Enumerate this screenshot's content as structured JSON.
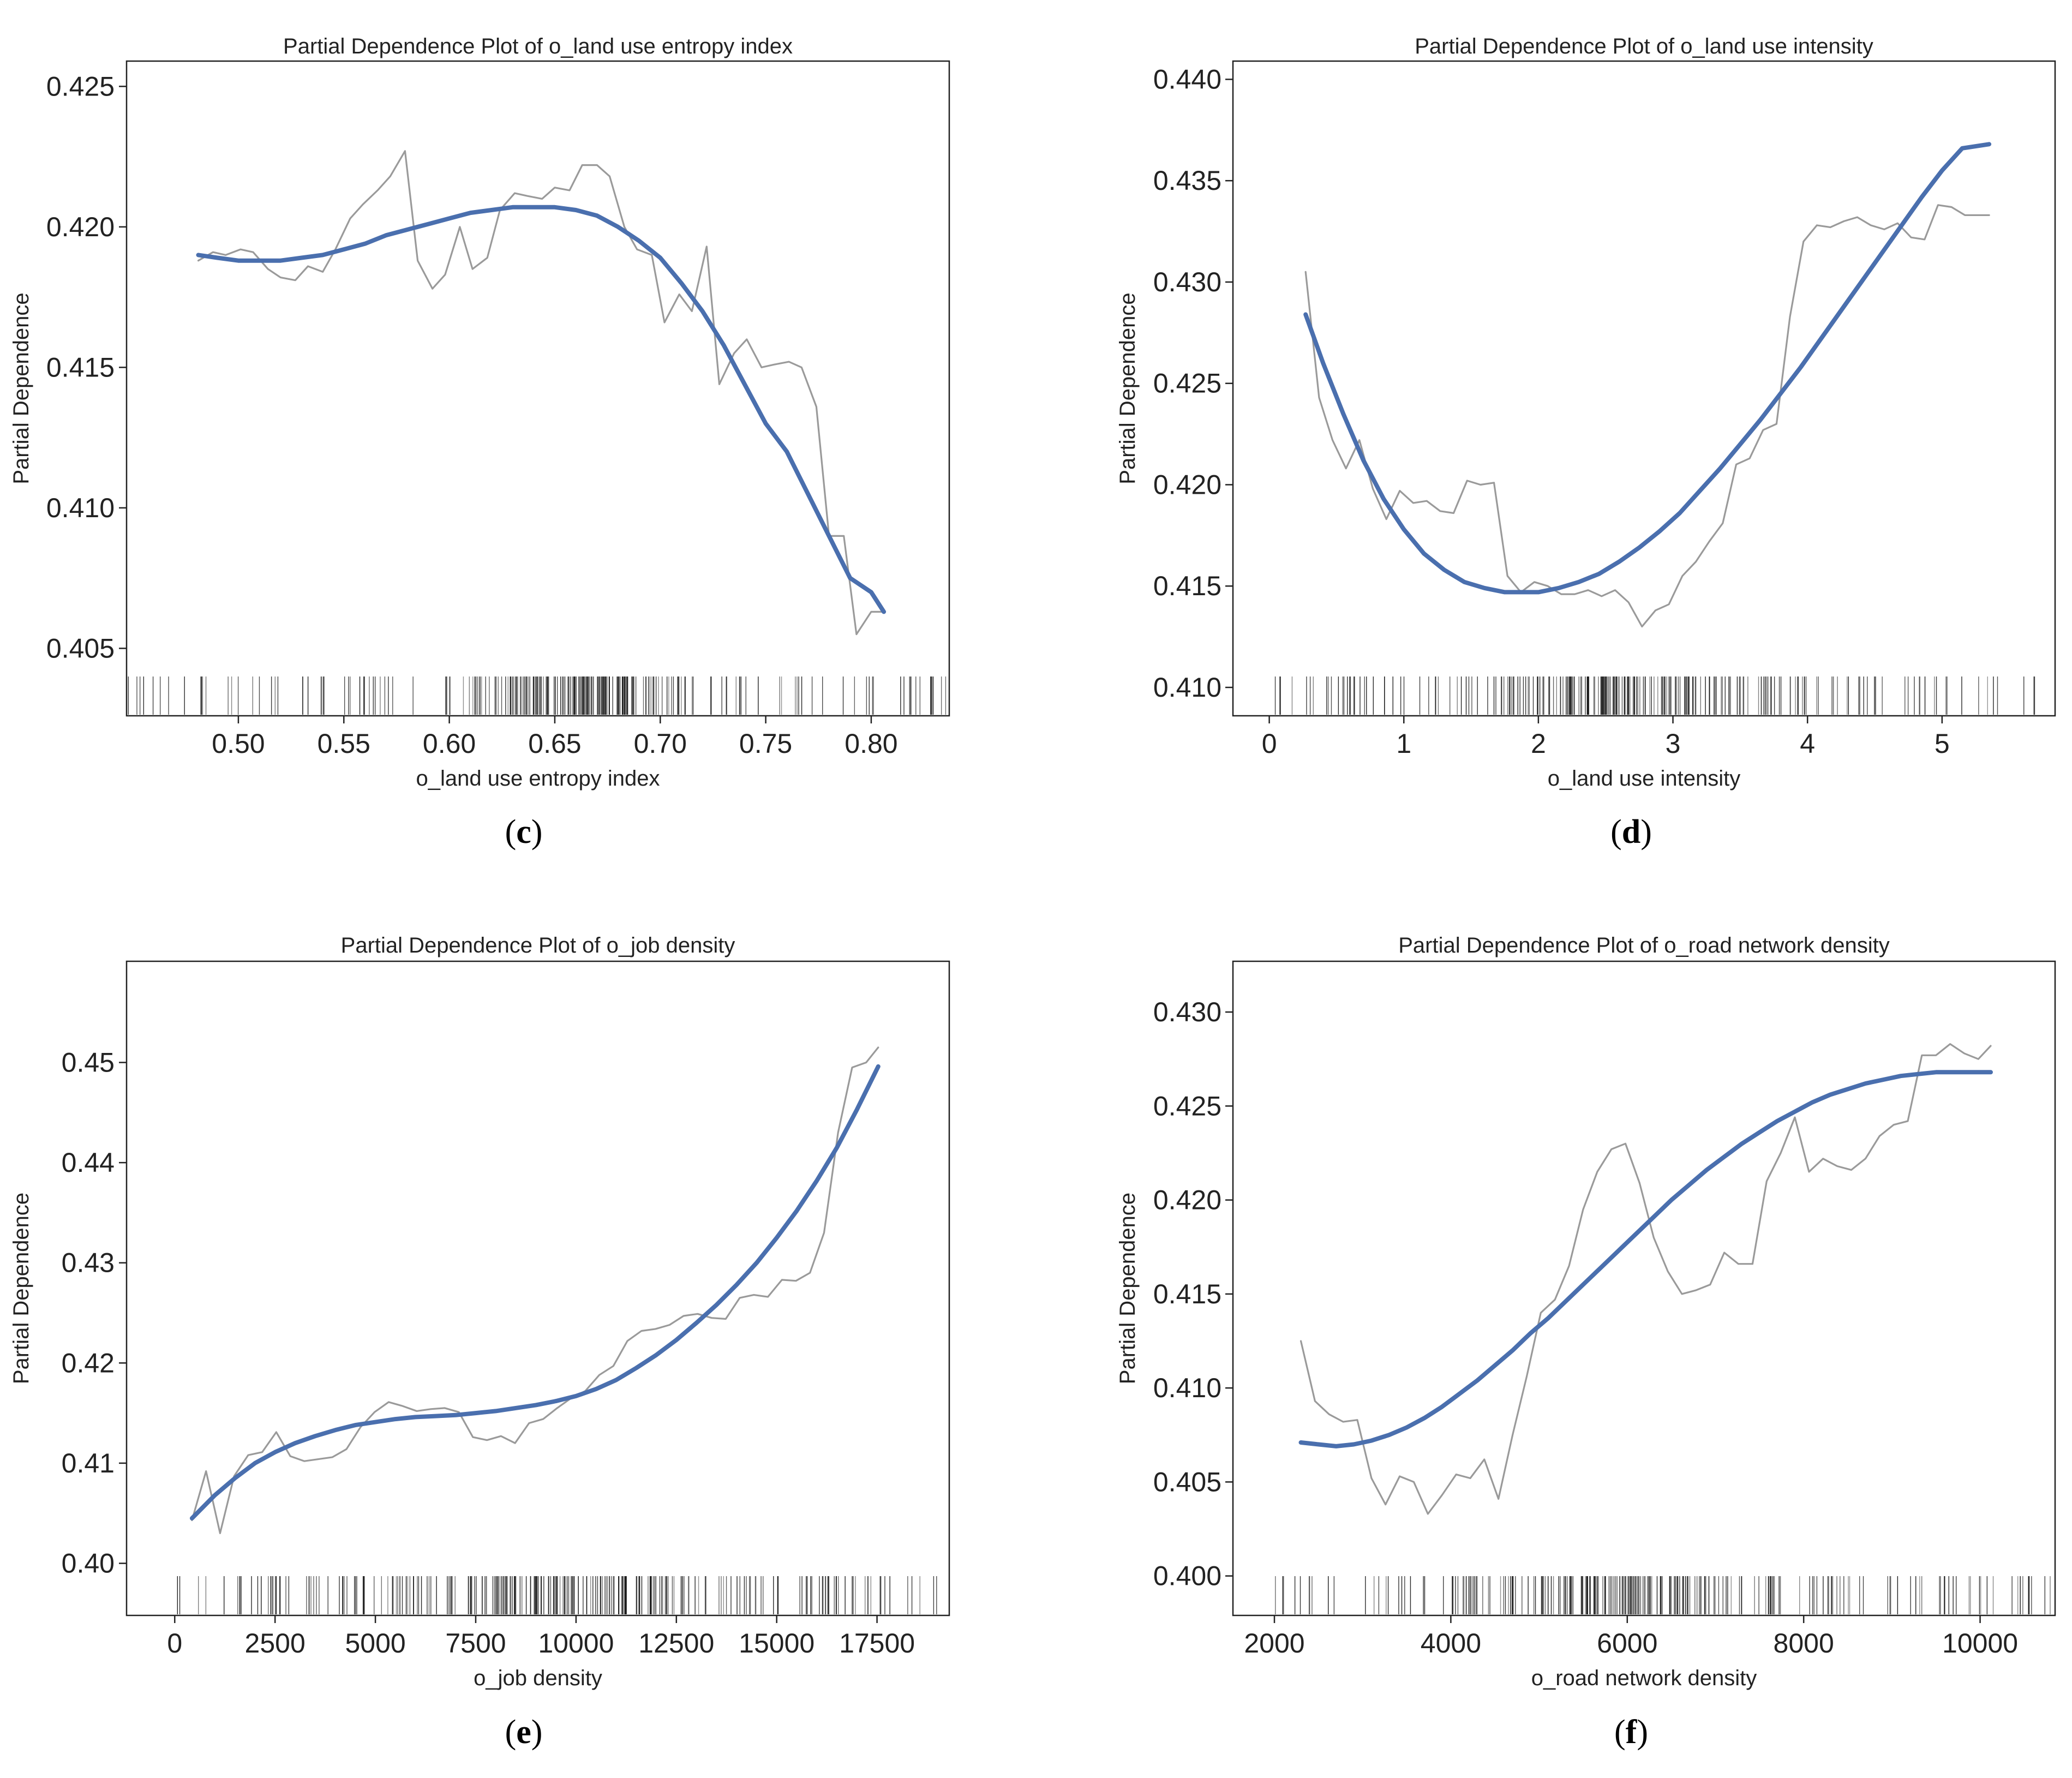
{
  "colors": {
    "raw": "#9a9a9a",
    "fit": "#4a6fae",
    "rug": "#111111",
    "axis": "#222222",
    "background": "#ffffff"
  },
  "chart_data": [
    {
      "id": "c",
      "type": "line",
      "caption": "c",
      "title": "Partial Dependence Plot of o_land use entropy index",
      "xlabel": "o_land use entropy index",
      "ylabel": "Partial Dependence",
      "xlim": [
        0.447,
        0.837
      ],
      "ylim": [
        0.4026,
        0.4259
      ],
      "xticks": [
        0.5,
        0.55,
        0.6,
        0.65,
        0.7,
        0.75,
        0.8
      ],
      "xtick_labels": [
        "0.50",
        "0.55",
        "0.60",
        "0.65",
        "0.70",
        "0.75",
        "0.80"
      ],
      "yticks": [
        0.405,
        0.41,
        0.415,
        0.42,
        0.425
      ],
      "ytick_labels": [
        "0.405",
        "0.410",
        "0.415",
        "0.420",
        "0.425"
      ],
      "rug": {
        "range": [
          0.447,
          0.836
        ],
        "count": 260,
        "dense": [
          0.66,
          0.04
        ]
      },
      "series": [
        {
          "name": "raw",
          "style": "thin",
          "x": [
            0.481,
            0.488,
            0.494,
            0.501,
            0.507,
            0.514,
            0.52,
            0.527,
            0.533,
            0.54,
            0.546,
            0.553,
            0.559,
            0.566,
            0.572,
            0.579,
            0.585,
            0.592,
            0.598,
            0.605,
            0.611,
            0.618,
            0.624,
            0.631,
            0.637,
            0.644,
            0.65,
            0.657,
            0.663,
            0.67,
            0.676,
            0.683,
            0.689,
            0.696,
            0.702,
            0.709,
            0.715,
            0.722,
            0.728,
            0.735,
            0.741,
            0.748,
            0.754,
            0.761,
            0.767,
            0.774,
            0.78,
            0.787,
            0.793,
            0.8,
            0.806
          ],
          "y": [
            0.4188,
            0.4191,
            0.419,
            0.4192,
            0.4191,
            0.4185,
            0.4182,
            0.4181,
            0.4186,
            0.4184,
            0.4192,
            0.4203,
            0.4208,
            0.4213,
            0.4218,
            0.4227,
            0.4188,
            0.4178,
            0.4183,
            0.42,
            0.4185,
            0.4189,
            0.4206,
            0.4212,
            0.4211,
            0.421,
            0.4214,
            0.4213,
            0.4222,
            0.4222,
            0.4218,
            0.42,
            0.4192,
            0.419,
            0.4166,
            0.4176,
            0.417,
            0.4193,
            0.4144,
            0.4155,
            0.416,
            0.415,
            0.4151,
            0.4152,
            0.415,
            0.4136,
            0.409,
            0.409,
            0.4055,
            0.4063,
            0.4063
          ]
        },
        {
          "name": "fit",
          "style": "thick",
          "x": [
            0.481,
            0.49,
            0.5,
            0.51,
            0.52,
            0.53,
            0.54,
            0.55,
            0.56,
            0.57,
            0.58,
            0.59,
            0.6,
            0.61,
            0.62,
            0.63,
            0.64,
            0.65,
            0.66,
            0.67,
            0.68,
            0.69,
            0.7,
            0.71,
            0.72,
            0.73,
            0.74,
            0.75,
            0.76,
            0.77,
            0.78,
            0.79,
            0.8,
            0.806
          ],
          "y": [
            0.419,
            0.4189,
            0.4188,
            0.4188,
            0.4188,
            0.4189,
            0.419,
            0.4192,
            0.4194,
            0.4197,
            0.4199,
            0.4201,
            0.4203,
            0.4205,
            0.4206,
            0.4207,
            0.4207,
            0.4207,
            0.4206,
            0.4204,
            0.42,
            0.4195,
            0.4189,
            0.418,
            0.417,
            0.4158,
            0.4144,
            0.413,
            0.412,
            0.4105,
            0.409,
            0.4075,
            0.407,
            0.4063
          ]
        }
      ]
    },
    {
      "id": "d",
      "type": "line",
      "caption": "d",
      "title": "Partial Dependence Plot of o_land use intensity",
      "xlabel": "o_land use intensity",
      "ylabel": "Partial Dependence",
      "xlim": [
        -0.27,
        5.84
      ],
      "ylim": [
        0.4086,
        0.4409
      ],
      "xticks": [
        0,
        1,
        2,
        3,
        4,
        5
      ],
      "xtick_labels": [
        "0",
        "1",
        "2",
        "3",
        "4",
        "5"
      ],
      "yticks": [
        0.41,
        0.415,
        0.42,
        0.425,
        0.43,
        0.435,
        0.44
      ],
      "yticks_labels_note": "labels below",
      "ytick_labels": [
        "0.410",
        "0.415",
        "0.420",
        "0.425",
        "0.430",
        "0.435",
        "0.440"
      ],
      "rug": {
        "range": [
          0.0,
          5.7
        ],
        "count": 260,
        "dense": [
          2.8,
          1.0
        ]
      },
      "series": [
        {
          "name": "raw",
          "style": "thin",
          "x": [
            0.27,
            0.37,
            0.47,
            0.57,
            0.67,
            0.77,
            0.87,
            0.97,
            1.07,
            1.17,
            1.27,
            1.37,
            1.47,
            1.57,
            1.67,
            1.77,
            1.87,
            1.97,
            2.07,
            2.17,
            2.27,
            2.37,
            2.47,
            2.57,
            2.67,
            2.77,
            2.87,
            2.97,
            3.07,
            3.17,
            3.27,
            3.37,
            3.47,
            3.57,
            3.67,
            3.77,
            3.87,
            3.97,
            4.07,
            4.17,
            4.27,
            4.37,
            4.47,
            4.57,
            4.67,
            4.77,
            4.87,
            4.97,
            5.07,
            5.17,
            5.27,
            5.35
          ],
          "y": [
            0.4305,
            0.4243,
            0.4222,
            0.4208,
            0.4222,
            0.4198,
            0.4183,
            0.4197,
            0.4191,
            0.4192,
            0.4187,
            0.4186,
            0.4202,
            0.42,
            0.4201,
            0.4155,
            0.4147,
            0.4152,
            0.415,
            0.4146,
            0.4146,
            0.4148,
            0.4145,
            0.4148,
            0.4142,
            0.413,
            0.4138,
            0.4141,
            0.4155,
            0.4162,
            0.4172,
            0.4181,
            0.421,
            0.4213,
            0.4227,
            0.423,
            0.4283,
            0.432,
            0.4328,
            0.4327,
            0.433,
            0.4332,
            0.4328,
            0.4326,
            0.4329,
            0.4322,
            0.4321,
            0.4338,
            0.4337,
            0.4333,
            0.4333,
            0.4333
          ]
        },
        {
          "name": "fit",
          "style": "thick",
          "x": [
            0.27,
            0.4,
            0.55,
            0.7,
            0.85,
            1.0,
            1.15,
            1.3,
            1.45,
            1.6,
            1.75,
            1.9,
            2.0,
            2.15,
            2.3,
            2.45,
            2.6,
            2.75,
            2.9,
            3.05,
            3.2,
            3.35,
            3.5,
            3.65,
            3.8,
            3.95,
            4.1,
            4.25,
            4.4,
            4.55,
            4.7,
            4.85,
            5.0,
            5.15,
            5.35
          ],
          "y": [
            0.4284,
            0.426,
            0.4235,
            0.4212,
            0.4193,
            0.4178,
            0.4166,
            0.4158,
            0.4152,
            0.4149,
            0.4147,
            0.4147,
            0.4147,
            0.4149,
            0.4152,
            0.4156,
            0.4162,
            0.4169,
            0.4177,
            0.4186,
            0.4197,
            0.4208,
            0.422,
            0.4232,
            0.4245,
            0.4258,
            0.4272,
            0.4286,
            0.43,
            0.4314,
            0.4328,
            0.4342,
            0.4355,
            0.4366,
            0.4368
          ]
        }
      ]
    },
    {
      "id": "e",
      "type": "line",
      "caption": "e",
      "title": "Partial Dependence Plot of o_job density",
      "xlabel": "o_job density",
      "ylabel": "Partial Dependence",
      "xlim": [
        -1200,
        19300
      ],
      "ylim": [
        0.3948,
        0.4601
      ],
      "xticks": [
        0,
        2500,
        5000,
        7500,
        10000,
        12500,
        15000,
        17500
      ],
      "xtick_labels": [
        "0",
        "2500",
        "5000",
        "7500",
        "10000",
        "12500",
        "15000",
        "17500"
      ],
      "yticks": [
        0.4,
        0.41,
        0.42,
        0.43,
        0.44,
        0.45
      ],
      "ytick_labels": [
        "0.40",
        "0.41",
        "0.42",
        "0.43",
        "0.44",
        "0.45"
      ],
      "rug": {
        "range": [
          0,
          19000
        ],
        "count": 280,
        "dense": [
          9000,
          5000
        ]
      },
      "series": [
        {
          "name": "raw",
          "style": "thin",
          "x": [
            430,
            780,
            1130,
            1480,
            1830,
            2180,
            2530,
            2880,
            3230,
            3580,
            3930,
            4280,
            4630,
            4980,
            5330,
            5680,
            6030,
            6380,
            6730,
            7080,
            7430,
            7780,
            8130,
            8480,
            8830,
            9180,
            9530,
            9880,
            10230,
            10580,
            10930,
            11280,
            11630,
            11980,
            12330,
            12680,
            13030,
            13380,
            13730,
            14080,
            14430,
            14780,
            15130,
            15480,
            15830,
            16180,
            16530,
            16880,
            17230,
            17530
          ],
          "y": [
            0.4043,
            0.4092,
            0.403,
            0.4087,
            0.4108,
            0.4111,
            0.4131,
            0.4107,
            0.4102,
            0.4104,
            0.4106,
            0.4114,
            0.4136,
            0.4151,
            0.4161,
            0.4157,
            0.4152,
            0.4154,
            0.4155,
            0.4151,
            0.4126,
            0.4123,
            0.4127,
            0.412,
            0.414,
            0.4144,
            0.4155,
            0.4165,
            0.4172,
            0.4188,
            0.4197,
            0.4222,
            0.4232,
            0.4234,
            0.4238,
            0.4247,
            0.4249,
            0.4245,
            0.4244,
            0.4265,
            0.4268,
            0.4266,
            0.4283,
            0.4282,
            0.429,
            0.433,
            0.443,
            0.4495,
            0.45,
            0.4515
          ]
        },
        {
          "name": "fit",
          "style": "thick",
          "x": [
            430,
            1000,
            1500,
            2000,
            2500,
            3000,
            3500,
            4000,
            4500,
            5000,
            5500,
            6000,
            6500,
            7000,
            7500,
            8000,
            8500,
            9000,
            9500,
            10000,
            10500,
            11000,
            11500,
            12000,
            12500,
            13000,
            13500,
            14000,
            14500,
            15000,
            15500,
            16000,
            16500,
            17000,
            17530
          ],
          "y": [
            0.4045,
            0.4068,
            0.4085,
            0.41,
            0.4111,
            0.412,
            0.4127,
            0.4133,
            0.4138,
            0.4141,
            0.4144,
            0.4146,
            0.4147,
            0.4148,
            0.415,
            0.4152,
            0.4155,
            0.4158,
            0.4162,
            0.4167,
            0.4174,
            0.4183,
            0.4195,
            0.4208,
            0.4223,
            0.424,
            0.4258,
            0.4278,
            0.43,
            0.4325,
            0.4352,
            0.4382,
            0.4415,
            0.4453,
            0.4496
          ]
        }
      ]
    },
    {
      "id": "f",
      "type": "line",
      "caption": "f",
      "title": "Partial Dependence Plot of o_road network density",
      "xlabel": "o_road network density",
      "ylabel": "Partial Dependence",
      "xlim": [
        1530,
        10850
      ],
      "ylim": [
        0.3979,
        0.4327
      ],
      "xticks": [
        2000,
        4000,
        6000,
        8000,
        10000
      ],
      "xtick_labels": [
        "2000",
        "4000",
        "6000",
        "8000",
        "10000"
      ],
      "yticks": [
        0.4,
        0.405,
        0.41,
        0.415,
        0.42,
        0.425,
        0.43
      ],
      "ytick_labels": [
        "0.400",
        "0.405",
        "0.410",
        "0.415",
        "0.420",
        "0.425",
        "0.430"
      ],
      "rug": {
        "range": [
          1900,
          10800
        ],
        "count": 260,
        "dense": [
          6000,
          1600
        ]
      },
      "series": [
        {
          "name": "raw",
          "style": "thin",
          "x": [
            2300,
            2460,
            2620,
            2780,
            2940,
            3100,
            3260,
            3420,
            3580,
            3740,
            3900,
            4060,
            4220,
            4380,
            4540,
            4700,
            4860,
            5020,
            5180,
            5340,
            5500,
            5660,
            5820,
            5980,
            6140,
            6300,
            6460,
            6620,
            6780,
            6940,
            7100,
            7260,
            7420,
            7580,
            7740,
            7900,
            8060,
            8220,
            8380,
            8540,
            8700,
            8860,
            9020,
            9180,
            9340,
            9500,
            9660,
            9820,
            9980,
            10120
          ],
          "y": [
            0.4125,
            0.4093,
            0.4086,
            0.4082,
            0.4083,
            0.4052,
            0.4038,
            0.4053,
            0.405,
            0.4033,
            0.4043,
            0.4054,
            0.4052,
            0.4062,
            0.4041,
            0.4075,
            0.4106,
            0.414,
            0.4147,
            0.4165,
            0.4195,
            0.4215,
            0.4227,
            0.423,
            0.4209,
            0.418,
            0.4162,
            0.415,
            0.4152,
            0.4155,
            0.4172,
            0.4166,
            0.4166,
            0.421,
            0.4225,
            0.4244,
            0.4215,
            0.4222,
            0.4218,
            0.4216,
            0.4222,
            0.4234,
            0.424,
            0.4242,
            0.4277,
            0.4277,
            0.4283,
            0.4278,
            0.4275,
            0.4282
          ]
        },
        {
          "name": "fit",
          "style": "thick",
          "x": [
            2300,
            2500,
            2700,
            2900,
            3100,
            3300,
            3500,
            3700,
            3900,
            4100,
            4300,
            4500,
            4700,
            4900,
            5100,
            5300,
            5500,
            5700,
            5900,
            6100,
            6300,
            6500,
            6700,
            6900,
            7100,
            7300,
            7500,
            7700,
            7900,
            8100,
            8300,
            8500,
            8700,
            8900,
            9100,
            9300,
            9500,
            9700,
            9900,
            10120
          ],
          "y": [
            0.4071,
            0.407,
            0.4069,
            0.407,
            0.4072,
            0.4075,
            0.4079,
            0.4084,
            0.409,
            0.4097,
            0.4104,
            0.4112,
            0.412,
            0.4129,
            0.4137,
            0.4146,
            0.4155,
            0.4164,
            0.4173,
            0.4182,
            0.4191,
            0.42,
            0.4208,
            0.4216,
            0.4223,
            0.423,
            0.4236,
            0.4242,
            0.4247,
            0.4252,
            0.4256,
            0.4259,
            0.4262,
            0.4264,
            0.4266,
            0.4267,
            0.4268,
            0.4268,
            0.4268,
            0.4268
          ]
        }
      ]
    }
  ]
}
